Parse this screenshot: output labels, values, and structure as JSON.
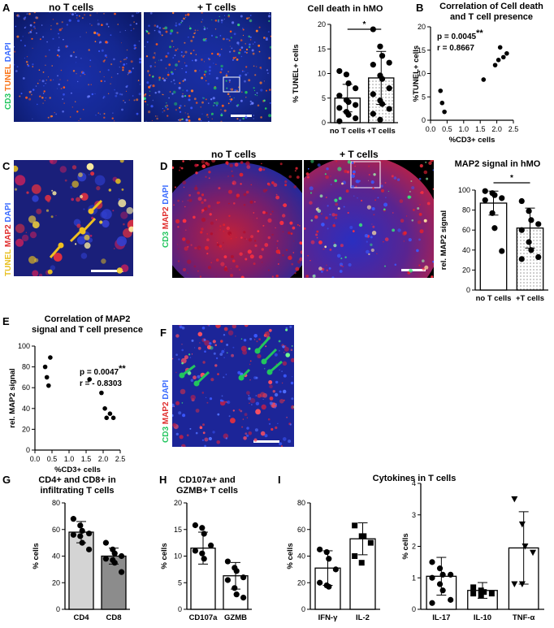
{
  "panels": {
    "A": {
      "label": "A",
      "micro_titles": [
        "no T cells",
        "+ T cells"
      ],
      "stain": [
        {
          "text": "CD3 ",
          "color": "#22c55e"
        },
        {
          "text": "TUNEL ",
          "color": "#f97316"
        },
        {
          "text": "DAPI",
          "color": "#3b6cff"
        }
      ]
    },
    "A_chart": {
      "title": "Cell death in hMO"
    },
    "B": {
      "label": "B",
      "title": "Correlation of Cell death\nand T cell presence",
      "p": "p = 0.0045",
      "p_sig": "**",
      "r": "r = 0.8667"
    },
    "C": {
      "label": "C",
      "stain": [
        {
          "text": "TUNEL ",
          "color": "#e8c020"
        },
        {
          "text": "MAP2 ",
          "color": "#e03030"
        },
        {
          "text": "DAPI",
          "color": "#3b6cff"
        }
      ]
    },
    "D": {
      "label": "D",
      "micro_titles": [
        "no T cells",
        "+ T cells"
      ],
      "stain": [
        {
          "text": "CD3 ",
          "color": "#22c55e"
        },
        {
          "text": "MAP2 ",
          "color": "#e03030"
        },
        {
          "text": "DAPI",
          "color": "#3b6cff"
        }
      ]
    },
    "D_chart": {
      "title": "MAP2 signal in hMO"
    },
    "E": {
      "label": "E",
      "title": "Correlation of MAP2\nsignal and T cell presence",
      "p": "p = 0.0047",
      "p_sig": "**",
      "r": "r = - 0.8303"
    },
    "F": {
      "label": "F",
      "stain": [
        {
          "text": "CD3 ",
          "color": "#22c55e"
        },
        {
          "text": "MAP2 ",
          "color": "#e03030"
        },
        {
          "text": "DAPI",
          "color": "#3b6cff"
        }
      ]
    },
    "G": {
      "label": "G",
      "title": "CD4+ and CD8+ in\ninfiltrating T cells"
    },
    "H": {
      "label": "H",
      "title": "CD107a+ and\nGZMB+ T cells"
    },
    "I": {
      "label": "I",
      "title": "Cytokines in T cells"
    }
  },
  "chart_data": [
    {
      "id": "A",
      "type": "bar",
      "ylabel": "% TUNEL+ cells",
      "ylim": [
        0,
        20
      ],
      "yticks": [
        0,
        5,
        10,
        15,
        20
      ],
      "categories": [
        "no T cells",
        "+T cells"
      ],
      "values": [
        5.0,
        9.1
      ],
      "err": [
        2.8,
        5.4
      ],
      "bar_fill": [
        "white",
        "dotted"
      ],
      "significance": "*",
      "points": [
        [
          10.5,
          9.8,
          8.0,
          7.0,
          5.5,
          4.6,
          4.2,
          3.6,
          3.0,
          2.2,
          1.6,
          0.9,
          0.3
        ],
        [
          19.0,
          15.5,
          13.6,
          12.2,
          11.8,
          9.6,
          8.9,
          7.0,
          5.8,
          4.5,
          3.8,
          2.8,
          1.8,
          0.6
        ]
      ]
    },
    {
      "id": "B",
      "type": "scatter",
      "xlabel": "%CD3+ cells",
      "ylabel": "%TUNEL+ cells",
      "xlim": [
        0,
        2.5
      ],
      "ylim": [
        0,
        20
      ],
      "xticks": [
        0.0,
        0.5,
        1.0,
        1.5,
        2.0,
        2.5
      ],
      "yticks": [
        0,
        5,
        10,
        15,
        20
      ],
      "x": [
        0.3,
        0.35,
        0.42,
        1.6,
        1.95,
        2.05,
        2.1,
        2.2,
        2.3
      ],
      "y": [
        6.3,
        3.7,
        1.8,
        8.7,
        11.8,
        12.9,
        15.6,
        13.5,
        14.3
      ]
    },
    {
      "id": "D",
      "type": "bar",
      "ylabel": "rel. MAP2 signal",
      "ylim": [
        0,
        100
      ],
      "yticks": [
        0,
        20,
        40,
        60,
        80,
        100
      ],
      "categories": [
        "no T cells",
        "+T cells"
      ],
      "values": [
        87,
        62
      ],
      "err": [
        12,
        20
      ],
      "bar_fill": [
        "white",
        "dotted"
      ],
      "significance": "*",
      "points": [
        [
          99,
          97,
          95,
          92,
          90,
          77,
          62,
          39
        ],
        [
          89,
          79,
          70,
          66,
          60,
          48,
          40,
          33,
          31
        ]
      ]
    },
    {
      "id": "E",
      "type": "scatter",
      "xlabel": "%CD3+ cells",
      "ylabel": "rel. MAP2 signal",
      "xlim": [
        0,
        2.5
      ],
      "ylim": [
        0,
        100
      ],
      "xticks": [
        0.0,
        0.5,
        1.0,
        1.5,
        2.0,
        2.5
      ],
      "yticks": [
        0,
        20,
        40,
        60,
        80,
        100
      ],
      "x": [
        0.3,
        0.35,
        0.4,
        0.45,
        1.6,
        1.95,
        2.05,
        2.1,
        2.2,
        2.3
      ],
      "y": [
        80,
        70,
        62,
        89,
        68,
        55,
        40,
        31,
        35,
        31
      ]
    },
    {
      "id": "G",
      "type": "bar",
      "ylabel": "% cells",
      "ylim": [
        0,
        80
      ],
      "yticks": [
        0,
        20,
        40,
        60,
        80
      ],
      "categories": [
        "CD4",
        "CD8"
      ],
      "values": [
        58,
        40
      ],
      "err": [
        8,
        6
      ],
      "bar_fill": [
        "#d4d4d4",
        "#8c8c8c"
      ],
      "points": [
        [
          68,
          63,
          59,
          57,
          56,
          55,
          50,
          45
        ],
        [
          50,
          45,
          42,
          40,
          38,
          37,
          35,
          28
        ]
      ]
    },
    {
      "id": "H",
      "type": "bar",
      "ylabel": "% cells",
      "ylim": [
        0,
        20
      ],
      "yticks": [
        0,
        5,
        10,
        15,
        20
      ],
      "categories": [
        "CD107a",
        "GZMB"
      ],
      "values": [
        11.5,
        6.3
      ],
      "err": [
        3.0,
        2.5
      ],
      "bar_fill": [
        "white",
        "white"
      ],
      "points": [
        [
          15.8,
          15.3,
          14.2,
          12.0,
          11.0,
          10.5,
          9.5
        ],
        [
          9.0,
          7.8,
          7.2,
          6.0,
          5.5,
          4.0,
          2.8,
          2.2
        ]
      ]
    },
    {
      "id": "I1",
      "type": "bar",
      "ylabel": "% cells",
      "ylim": [
        0,
        80
      ],
      "yticks": [
        0,
        20,
        40,
        60,
        80
      ],
      "categories": [
        "IFN-γ",
        "IL-2"
      ],
      "values": [
        31,
        53
      ],
      "err": [
        13,
        12
      ],
      "bar_fill": [
        "white",
        "white"
      ],
      "markers": [
        "circle",
        "square"
      ],
      "points": [
        [
          45,
          43,
          38,
          30,
          20,
          18,
          17
        ],
        [
          63,
          55,
          55,
          50,
          40,
          35
        ]
      ]
    },
    {
      "id": "I2",
      "type": "bar",
      "ylabel": "% cells",
      "ylim": [
        0,
        4
      ],
      "yticks": [
        0,
        1,
        2,
        3,
        4
      ],
      "categories": [
        "IL-17",
        "IL-10",
        "TNF-α"
      ],
      "values": [
        1.05,
        0.6,
        1.95
      ],
      "err": [
        0.6,
        0.25,
        1.15
      ],
      "bar_fill": [
        "white",
        "white",
        "white"
      ],
      "markers": [
        "circle",
        "square",
        "triangle"
      ],
      "points": [
        [
          1.5,
          1.3,
          1.1,
          1.1,
          1.0,
          0.8,
          0.6,
          0.3,
          0.2
        ],
        [
          0.7,
          0.6,
          0.55,
          0.5,
          0.5,
          0.45
        ],
        [
          3.5,
          2.7,
          2.0,
          1.8,
          0.8,
          0.8
        ]
      ]
    }
  ]
}
